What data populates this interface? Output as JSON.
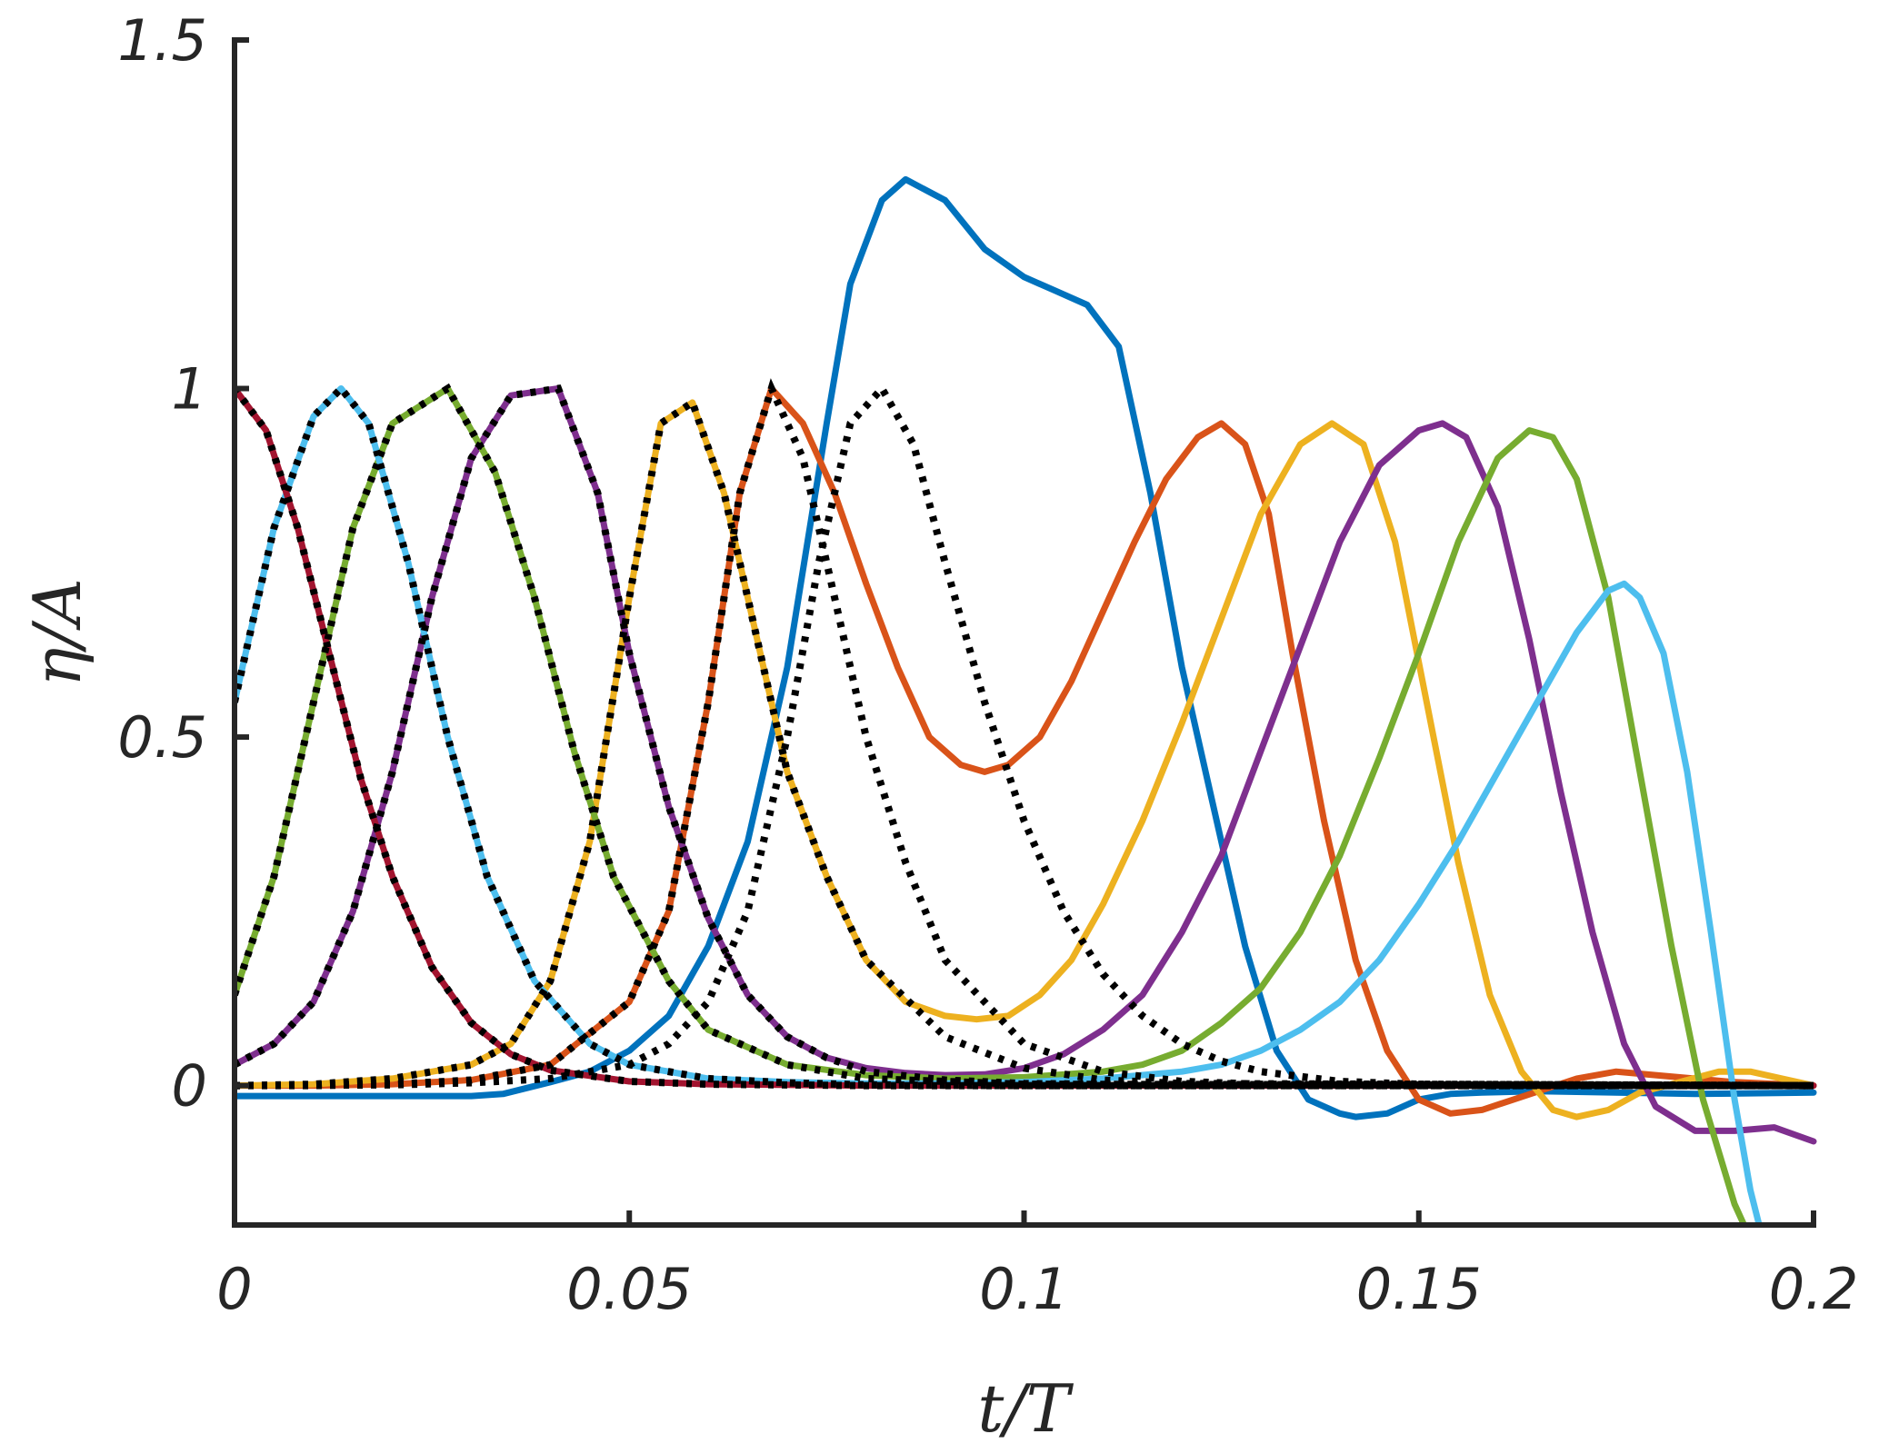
{
  "chart_data": {
    "type": "line",
    "title": "",
    "xlabel": "t/T",
    "ylabel": "η/A",
    "xlim": [
      0,
      0.2
    ],
    "ylim": [
      -0.2,
      1.5
    ],
    "xticks": [
      0,
      0.05,
      0.1,
      0.15,
      0.2
    ],
    "xtick_labels": [
      "0",
      "0.05",
      "0.1",
      "0.15",
      "0.2"
    ],
    "yticks": [
      0,
      0.5,
      1,
      1.5
    ],
    "ytick_labels": [
      "0",
      "0.5",
      "1",
      "1.5"
    ],
    "grid": false,
    "legend": "none",
    "colors": {
      "axis": "#262626",
      "blue": "#0072BD",
      "orange": "#D95319",
      "yellow": "#EDB120",
      "purple": "#7E2F8E",
      "green": "#77AC30",
      "cyan": "#4DBEEE",
      "darkred": "#A2142F",
      "dotted": "#000000"
    },
    "series": [
      {
        "color": "#0072BD",
        "style": "solid",
        "x": [
          0,
          0.01,
          0.02,
          0.03,
          0.034,
          0.04,
          0.045,
          0.05,
          0.055,
          0.06,
          0.065,
          0.07,
          0.075,
          0.078,
          0.082,
          0.085,
          0.09,
          0.095,
          0.1,
          0.104,
          0.108,
          0.112,
          0.116,
          0.12,
          0.124,
          0.128,
          0.132,
          0.136,
          0.14,
          0.142,
          0.146,
          0.15,
          0.154,
          0.158,
          0.165,
          0.175,
          0.185,
          0.2
        ],
        "y": [
          -0.015,
          -0.015,
          -0.015,
          -0.015,
          -0.012,
          0.005,
          0.02,
          0.05,
          0.1,
          0.2,
          0.35,
          0.6,
          0.95,
          1.15,
          1.27,
          1.3,
          1.27,
          1.2,
          1.16,
          1.14,
          1.12,
          1.06,
          0.85,
          0.6,
          0.4,
          0.2,
          0.05,
          -0.02,
          -0.04,
          -0.045,
          -0.04,
          -0.02,
          -0.012,
          -0.01,
          -0.008,
          -0.01,
          -0.012,
          -0.01
        ]
      },
      {
        "color": "#D95319",
        "style": "solid",
        "x": [
          0,
          0.01,
          0.02,
          0.03,
          0.04,
          0.05,
          0.055,
          0.06,
          0.064,
          0.068,
          0.072,
          0.076,
          0.08,
          0.084,
          0.088,
          0.092,
          0.095,
          0.098,
          0.102,
          0.106,
          0.11,
          0.114,
          0.118,
          0.122,
          0.125,
          0.128,
          0.131,
          0.134,
          0.138,
          0.142,
          0.146,
          0.15,
          0.154,
          0.158,
          0.162,
          0.166,
          0.17,
          0.175,
          0.18,
          0.19,
          0.2
        ],
        "y": [
          0,
          0,
          0.002,
          0.008,
          0.03,
          0.12,
          0.25,
          0.55,
          0.85,
          1.0,
          0.95,
          0.85,
          0.72,
          0.6,
          0.5,
          0.46,
          0.45,
          0.46,
          0.5,
          0.58,
          0.68,
          0.78,
          0.87,
          0.93,
          0.95,
          0.92,
          0.82,
          0.62,
          0.38,
          0.18,
          0.05,
          -0.02,
          -0.04,
          -0.035,
          -0.02,
          -0.005,
          0.01,
          0.02,
          0.015,
          0.005,
          0
        ]
      },
      {
        "color": "#EDB120",
        "style": "solid",
        "x": [
          0,
          0.01,
          0.02,
          0.03,
          0.035,
          0.04,
          0.045,
          0.05,
          0.054,
          0.058,
          0.062,
          0.066,
          0.07,
          0.075,
          0.08,
          0.085,
          0.09,
          0.094,
          0.098,
          0.102,
          0.106,
          0.11,
          0.115,
          0.12,
          0.125,
          0.13,
          0.135,
          0.139,
          0.143,
          0.147,
          0.151,
          0.155,
          0.159,
          0.163,
          0.167,
          0.17,
          0.174,
          0.178,
          0.183,
          0.188,
          0.192,
          0.196,
          0.2
        ],
        "y": [
          0,
          0.002,
          0.01,
          0.03,
          0.06,
          0.15,
          0.35,
          0.7,
          0.95,
          0.98,
          0.85,
          0.65,
          0.45,
          0.3,
          0.18,
          0.12,
          0.1,
          0.095,
          0.1,
          0.13,
          0.18,
          0.26,
          0.38,
          0.52,
          0.67,
          0.82,
          0.92,
          0.95,
          0.92,
          0.78,
          0.55,
          0.32,
          0.13,
          0.02,
          -0.035,
          -0.045,
          -0.035,
          -0.01,
          0.005,
          0.02,
          0.02,
          0.01,
          0
        ]
      },
      {
        "color": "#7E2F8E",
        "style": "solid",
        "x": [
          0,
          0.005,
          0.01,
          0.015,
          0.02,
          0.025,
          0.03,
          0.035,
          0.041,
          0.046,
          0.05,
          0.055,
          0.06,
          0.065,
          0.07,
          0.075,
          0.08,
          0.085,
          0.09,
          0.095,
          0.1,
          0.105,
          0.11,
          0.115,
          0.12,
          0.125,
          0.13,
          0.135,
          0.14,
          0.145,
          0.15,
          0.153,
          0.156,
          0.16,
          0.164,
          0.168,
          0.172,
          0.176,
          0.18,
          0.185,
          0.19,
          0.195,
          0.2
        ],
        "y": [
          0.03,
          0.06,
          0.12,
          0.25,
          0.45,
          0.7,
          0.9,
          0.99,
          1.0,
          0.85,
          0.62,
          0.4,
          0.24,
          0.13,
          0.07,
          0.04,
          0.025,
          0.018,
          0.015,
          0.016,
          0.025,
          0.045,
          0.08,
          0.13,
          0.22,
          0.33,
          0.48,
          0.63,
          0.78,
          0.89,
          0.94,
          0.95,
          0.93,
          0.83,
          0.64,
          0.42,
          0.22,
          0.06,
          -0.03,
          -0.065,
          -0.065,
          -0.06,
          -0.08
        ]
      },
      {
        "color": "#77AC30",
        "style": "solid",
        "x": [
          0,
          0.005,
          0.01,
          0.015,
          0.02,
          0.027,
          0.033,
          0.038,
          0.043,
          0.048,
          0.055,
          0.06,
          0.07,
          0.08,
          0.09,
          0.1,
          0.11,
          0.115,
          0.12,
          0.125,
          0.13,
          0.135,
          0.14,
          0.145,
          0.15,
          0.155,
          0.16,
          0.164,
          0.167,
          0.17,
          0.174,
          0.178,
          0.182,
          0.186,
          0.19,
          0.192
        ],
        "y": [
          0.13,
          0.3,
          0.55,
          0.8,
          0.95,
          1.0,
          0.88,
          0.7,
          0.48,
          0.3,
          0.15,
          0.08,
          0.03,
          0.015,
          0.01,
          0.012,
          0.02,
          0.03,
          0.05,
          0.09,
          0.14,
          0.22,
          0.33,
          0.47,
          0.62,
          0.78,
          0.9,
          0.94,
          0.93,
          0.87,
          0.7,
          0.45,
          0.2,
          -0.02,
          -0.17,
          -0.22
        ]
      },
      {
        "color": "#4DBEEE",
        "style": "solid",
        "x": [
          0,
          0.005,
          0.01,
          0.0135,
          0.017,
          0.022,
          0.027,
          0.032,
          0.038,
          0.045,
          0.05,
          0.06,
          0.07,
          0.08,
          0.09,
          0.1,
          0.11,
          0.12,
          0.125,
          0.13,
          0.135,
          0.14,
          0.145,
          0.15,
          0.155,
          0.16,
          0.165,
          0.17,
          0.174,
          0.176,
          0.178,
          0.181,
          0.184,
          0.187,
          0.19,
          0.192,
          0.194
        ],
        "y": [
          0.55,
          0.8,
          0.96,
          1.0,
          0.95,
          0.75,
          0.5,
          0.3,
          0.15,
          0.06,
          0.03,
          0.01,
          0.005,
          0.003,
          0.003,
          0.005,
          0.01,
          0.02,
          0.03,
          0.05,
          0.08,
          0.12,
          0.18,
          0.26,
          0.35,
          0.45,
          0.55,
          0.65,
          0.71,
          0.72,
          0.7,
          0.62,
          0.45,
          0.22,
          -0.02,
          -0.15,
          -0.24
        ]
      },
      {
        "color": "#A2142F",
        "style": "solid",
        "x": [
          0,
          0.004,
          0.008,
          0.012,
          0.016,
          0.02,
          0.025,
          0.03,
          0.035,
          0.04,
          0.05,
          0.06,
          0.08,
          0.1,
          0.15,
          0.2
        ],
        "y": [
          1.0,
          0.94,
          0.8,
          0.62,
          0.44,
          0.3,
          0.17,
          0.09,
          0.045,
          0.022,
          0.006,
          0.002,
          0,
          0,
          0,
          0
        ]
      },
      {
        "color": "#000000",
        "style": "dotted",
        "x": [
          0,
          0.004,
          0.008,
          0.012,
          0.016,
          0.02,
          0.025,
          0.03,
          0.035,
          0.04,
          0.05,
          0.06,
          0.08,
          0.1,
          0.2
        ],
        "y": [
          1.0,
          0.94,
          0.8,
          0.62,
          0.44,
          0.3,
          0.17,
          0.09,
          0.045,
          0.022,
          0.006,
          0.002,
          0,
          0,
          0
        ]
      },
      {
        "color": "#000000",
        "style": "dotted",
        "x": [
          0,
          0.005,
          0.01,
          0.0135,
          0.017,
          0.022,
          0.027,
          0.032,
          0.038,
          0.045,
          0.05,
          0.06,
          0.07,
          0.08,
          0.1,
          0.2
        ],
        "y": [
          0.55,
          0.8,
          0.96,
          1.0,
          0.95,
          0.75,
          0.5,
          0.3,
          0.15,
          0.06,
          0.03,
          0.01,
          0.004,
          0.001,
          0,
          0
        ]
      },
      {
        "color": "#000000",
        "style": "dotted",
        "x": [
          0,
          0.005,
          0.01,
          0.015,
          0.02,
          0.027,
          0.033,
          0.038,
          0.043,
          0.048,
          0.055,
          0.06,
          0.07,
          0.08,
          0.1,
          0.2
        ],
        "y": [
          0.13,
          0.3,
          0.55,
          0.8,
          0.95,
          1.0,
          0.88,
          0.7,
          0.48,
          0.3,
          0.15,
          0.08,
          0.03,
          0.01,
          0.002,
          0
        ]
      },
      {
        "color": "#000000",
        "style": "dotted",
        "x": [
          0,
          0.005,
          0.01,
          0.015,
          0.02,
          0.025,
          0.03,
          0.035,
          0.041,
          0.046,
          0.05,
          0.055,
          0.06,
          0.065,
          0.07,
          0.075,
          0.08,
          0.09,
          0.1,
          0.12,
          0.2
        ],
        "y": [
          0.03,
          0.06,
          0.12,
          0.25,
          0.45,
          0.7,
          0.9,
          0.99,
          1.0,
          0.85,
          0.62,
          0.4,
          0.24,
          0.13,
          0.07,
          0.04,
          0.02,
          0.008,
          0.003,
          0.001,
          0
        ]
      },
      {
        "color": "#000000",
        "style": "dotted",
        "x": [
          0,
          0.01,
          0.02,
          0.03,
          0.035,
          0.04,
          0.045,
          0.05,
          0.054,
          0.058,
          0.062,
          0.066,
          0.07,
          0.075,
          0.08,
          0.09,
          0.1,
          0.11,
          0.12,
          0.2
        ],
        "y": [
          0,
          0.002,
          0.01,
          0.03,
          0.06,
          0.15,
          0.35,
          0.7,
          0.95,
          0.98,
          0.85,
          0.65,
          0.45,
          0.3,
          0.18,
          0.07,
          0.025,
          0.008,
          0.003,
          0
        ]
      },
      {
        "color": "#000000",
        "style": "dotted",
        "x": [
          0,
          0.01,
          0.02,
          0.03,
          0.04,
          0.05,
          0.055,
          0.06,
          0.064,
          0.068,
          0.072,
          0.076,
          0.08,
          0.085,
          0.09,
          0.1,
          0.11,
          0.12,
          0.13,
          0.2
        ],
        "y": [
          0,
          0,
          0.002,
          0.008,
          0.03,
          0.12,
          0.25,
          0.55,
          0.85,
          1.0,
          0.9,
          0.7,
          0.5,
          0.32,
          0.18,
          0.06,
          0.02,
          0.006,
          0.002,
          0
        ]
      },
      {
        "color": "#000000",
        "style": "dotted",
        "x": [
          0,
          0.02,
          0.03,
          0.04,
          0.05,
          0.055,
          0.06,
          0.065,
          0.07,
          0.074,
          0.078,
          0.082,
          0.086,
          0.09,
          0.095,
          0.1,
          0.105,
          0.11,
          0.115,
          0.12,
          0.125,
          0.13,
          0.14,
          0.15,
          0.2
        ],
        "y": [
          0,
          0.001,
          0.004,
          0.01,
          0.03,
          0.06,
          0.12,
          0.25,
          0.5,
          0.75,
          0.95,
          1.0,
          0.92,
          0.75,
          0.55,
          0.38,
          0.25,
          0.16,
          0.1,
          0.06,
          0.035,
          0.02,
          0.006,
          0.002,
          0
        ]
      }
    ]
  }
}
